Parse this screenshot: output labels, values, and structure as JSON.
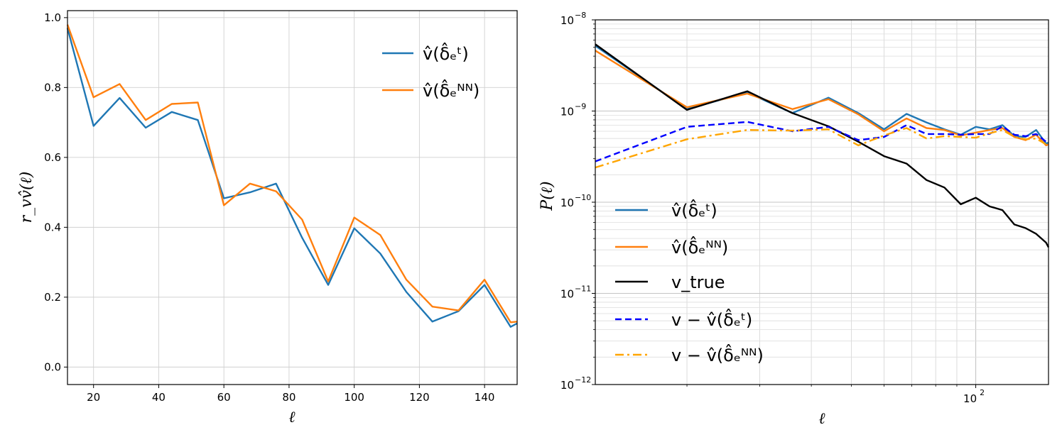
{
  "chart_data": [
    {
      "type": "line",
      "xlabel": "ℓ",
      "ylabel": "r_vv̂(ℓ)",
      "xlim": [
        12,
        150
      ],
      "ylim": [
        -0.05,
        1.02
      ],
      "xticks": [
        20,
        40,
        60,
        80,
        100,
        120,
        140
      ],
      "yticks": [
        0.0,
        0.2,
        0.4,
        0.6,
        0.8,
        1.0
      ],
      "xtick_labels": [
        "20",
        "40",
        "60",
        "80",
        "100",
        "120",
        "140"
      ],
      "ytick_labels": [
        "0.0",
        "0.2",
        "0.4",
        "0.6",
        "0.8",
        "1.0"
      ],
      "grid": true,
      "legend_position": "top-right",
      "x": [
        12,
        20,
        28,
        36,
        44,
        52,
        60,
        68,
        76,
        84,
        92,
        100,
        108,
        116,
        124,
        132,
        140,
        148,
        150
      ],
      "series": [
        {
          "name": "v̂(δ̂ₑᵗ)",
          "color": "#1f77b4",
          "style": "solid",
          "values": [
            0.97,
            0.69,
            0.77,
            0.685,
            0.73,
            0.707,
            0.483,
            0.5,
            0.525,
            0.37,
            0.235,
            0.397,
            0.325,
            0.215,
            0.13,
            0.16,
            0.235,
            0.115,
            0.125
          ]
        },
        {
          "name": "v̂(δ̂ₑᴺᴺ)",
          "color": "#ff7f0e",
          "style": "solid",
          "values": [
            0.98,
            0.772,
            0.81,
            0.707,
            0.753,
            0.757,
            0.463,
            0.525,
            0.503,
            0.422,
            0.245,
            0.428,
            0.378,
            0.25,
            0.173,
            0.162,
            0.25,
            0.128,
            0.13
          ]
        }
      ]
    },
    {
      "type": "line",
      "xscale": "log",
      "yscale": "log",
      "xlabel": "ℓ",
      "ylabel": "P(ℓ)",
      "xlim": [
        12,
        150
      ],
      "ylim": [
        1e-12,
        1e-08
      ],
      "ytick_values": [
        1e-12,
        1e-11,
        1e-10,
        1e-09,
        1e-08
      ],
      "ytick_labels": [
        {
          "base": "10",
          "exp": "−12"
        },
        {
          "base": "10",
          "exp": "−11"
        },
        {
          "base": "10",
          "exp": "−10"
        },
        {
          "base": "10",
          "exp": "−9"
        },
        {
          "base": "10",
          "exp": "−8"
        }
      ],
      "xtick_value": 100,
      "xtick_label": {
        "base": "10",
        "exp": "2"
      },
      "grid": true,
      "legend_position": "bottom-left",
      "x": [
        12,
        20,
        28,
        36,
        44,
        52,
        60,
        68,
        76,
        84,
        92,
        100,
        108,
        116,
        124,
        132,
        140,
        148,
        150
      ],
      "series": [
        {
          "name": "v̂(δ̂ₑᵗ)",
          "color": "#1f77b4",
          "style": "solid",
          "values": [
            5.2e-09,
            1.05e-09,
            1.6e-09,
            9.5e-10,
            1.4e-09,
            9.5e-10,
            6.3e-10,
            9.3e-10,
            7.5e-10,
            6.3e-10,
            5.5e-10,
            6.7e-10,
            6.3e-10,
            7e-10,
            5.3e-10,
            5.2e-10,
            6.2e-10,
            4.4e-10,
            4.5e-10
          ]
        },
        {
          "name": "v̂(δ̂ₑᴺᴺ)",
          "color": "#ff7f0e",
          "style": "solid",
          "values": [
            4.6e-09,
            1.1e-09,
            1.55e-09,
            1.05e-09,
            1.35e-09,
            9.2e-10,
            6e-10,
            8.3e-10,
            6.5e-10,
            6.2e-10,
            5.4e-10,
            5.8e-10,
            6.2e-10,
            6.5e-10,
            5.2e-10,
            4.8e-10,
            5.5e-10,
            4.2e-10,
            4.3e-10
          ]
        },
        {
          "name": "v_true",
          "color": "#000000",
          "style": "solid",
          "values": [
            5.4e-09,
            1.03e-09,
            1.65e-09,
            9.5e-10,
            6.8e-10,
            4.6e-10,
            3.2e-10,
            2.65e-10,
            1.75e-10,
            1.45e-10,
            9.5e-11,
            1.12e-10,
            9e-11,
            8.2e-11,
            5.7e-11,
            5.2e-11,
            4.5e-11,
            3.6e-11,
            3.2e-11
          ]
        },
        {
          "name": "v − v̂(δ̂ₑᵗ)",
          "color": "#0000ff",
          "style": "dashed",
          "values": [
            2.8e-10,
            6.7e-10,
            7.6e-10,
            6e-10,
            6.7e-10,
            4.8e-10,
            5.2e-10,
            7e-10,
            5.6e-10,
            5.6e-10,
            5.5e-10,
            5.6e-10,
            5.6e-10,
            6.8e-10,
            5.5e-10,
            5.3e-10,
            5.6e-10,
            4.6e-10,
            4.6e-10
          ]
        },
        {
          "name": "v − v̂(δ̂ₑᴺᴺ)",
          "color": "#ffa500",
          "style": "dashdot",
          "values": [
            2.4e-10,
            4.9e-10,
            6.2e-10,
            6.1e-10,
            6.3e-10,
            4.2e-10,
            5.4e-10,
            6.5e-10,
            5e-10,
            5.3e-10,
            5.2e-10,
            5.1e-10,
            5.7e-10,
            6.2e-10,
            5.2e-10,
            4.9e-10,
            5e-10,
            4.3e-10,
            4.3e-10
          ]
        }
      ]
    }
  ]
}
